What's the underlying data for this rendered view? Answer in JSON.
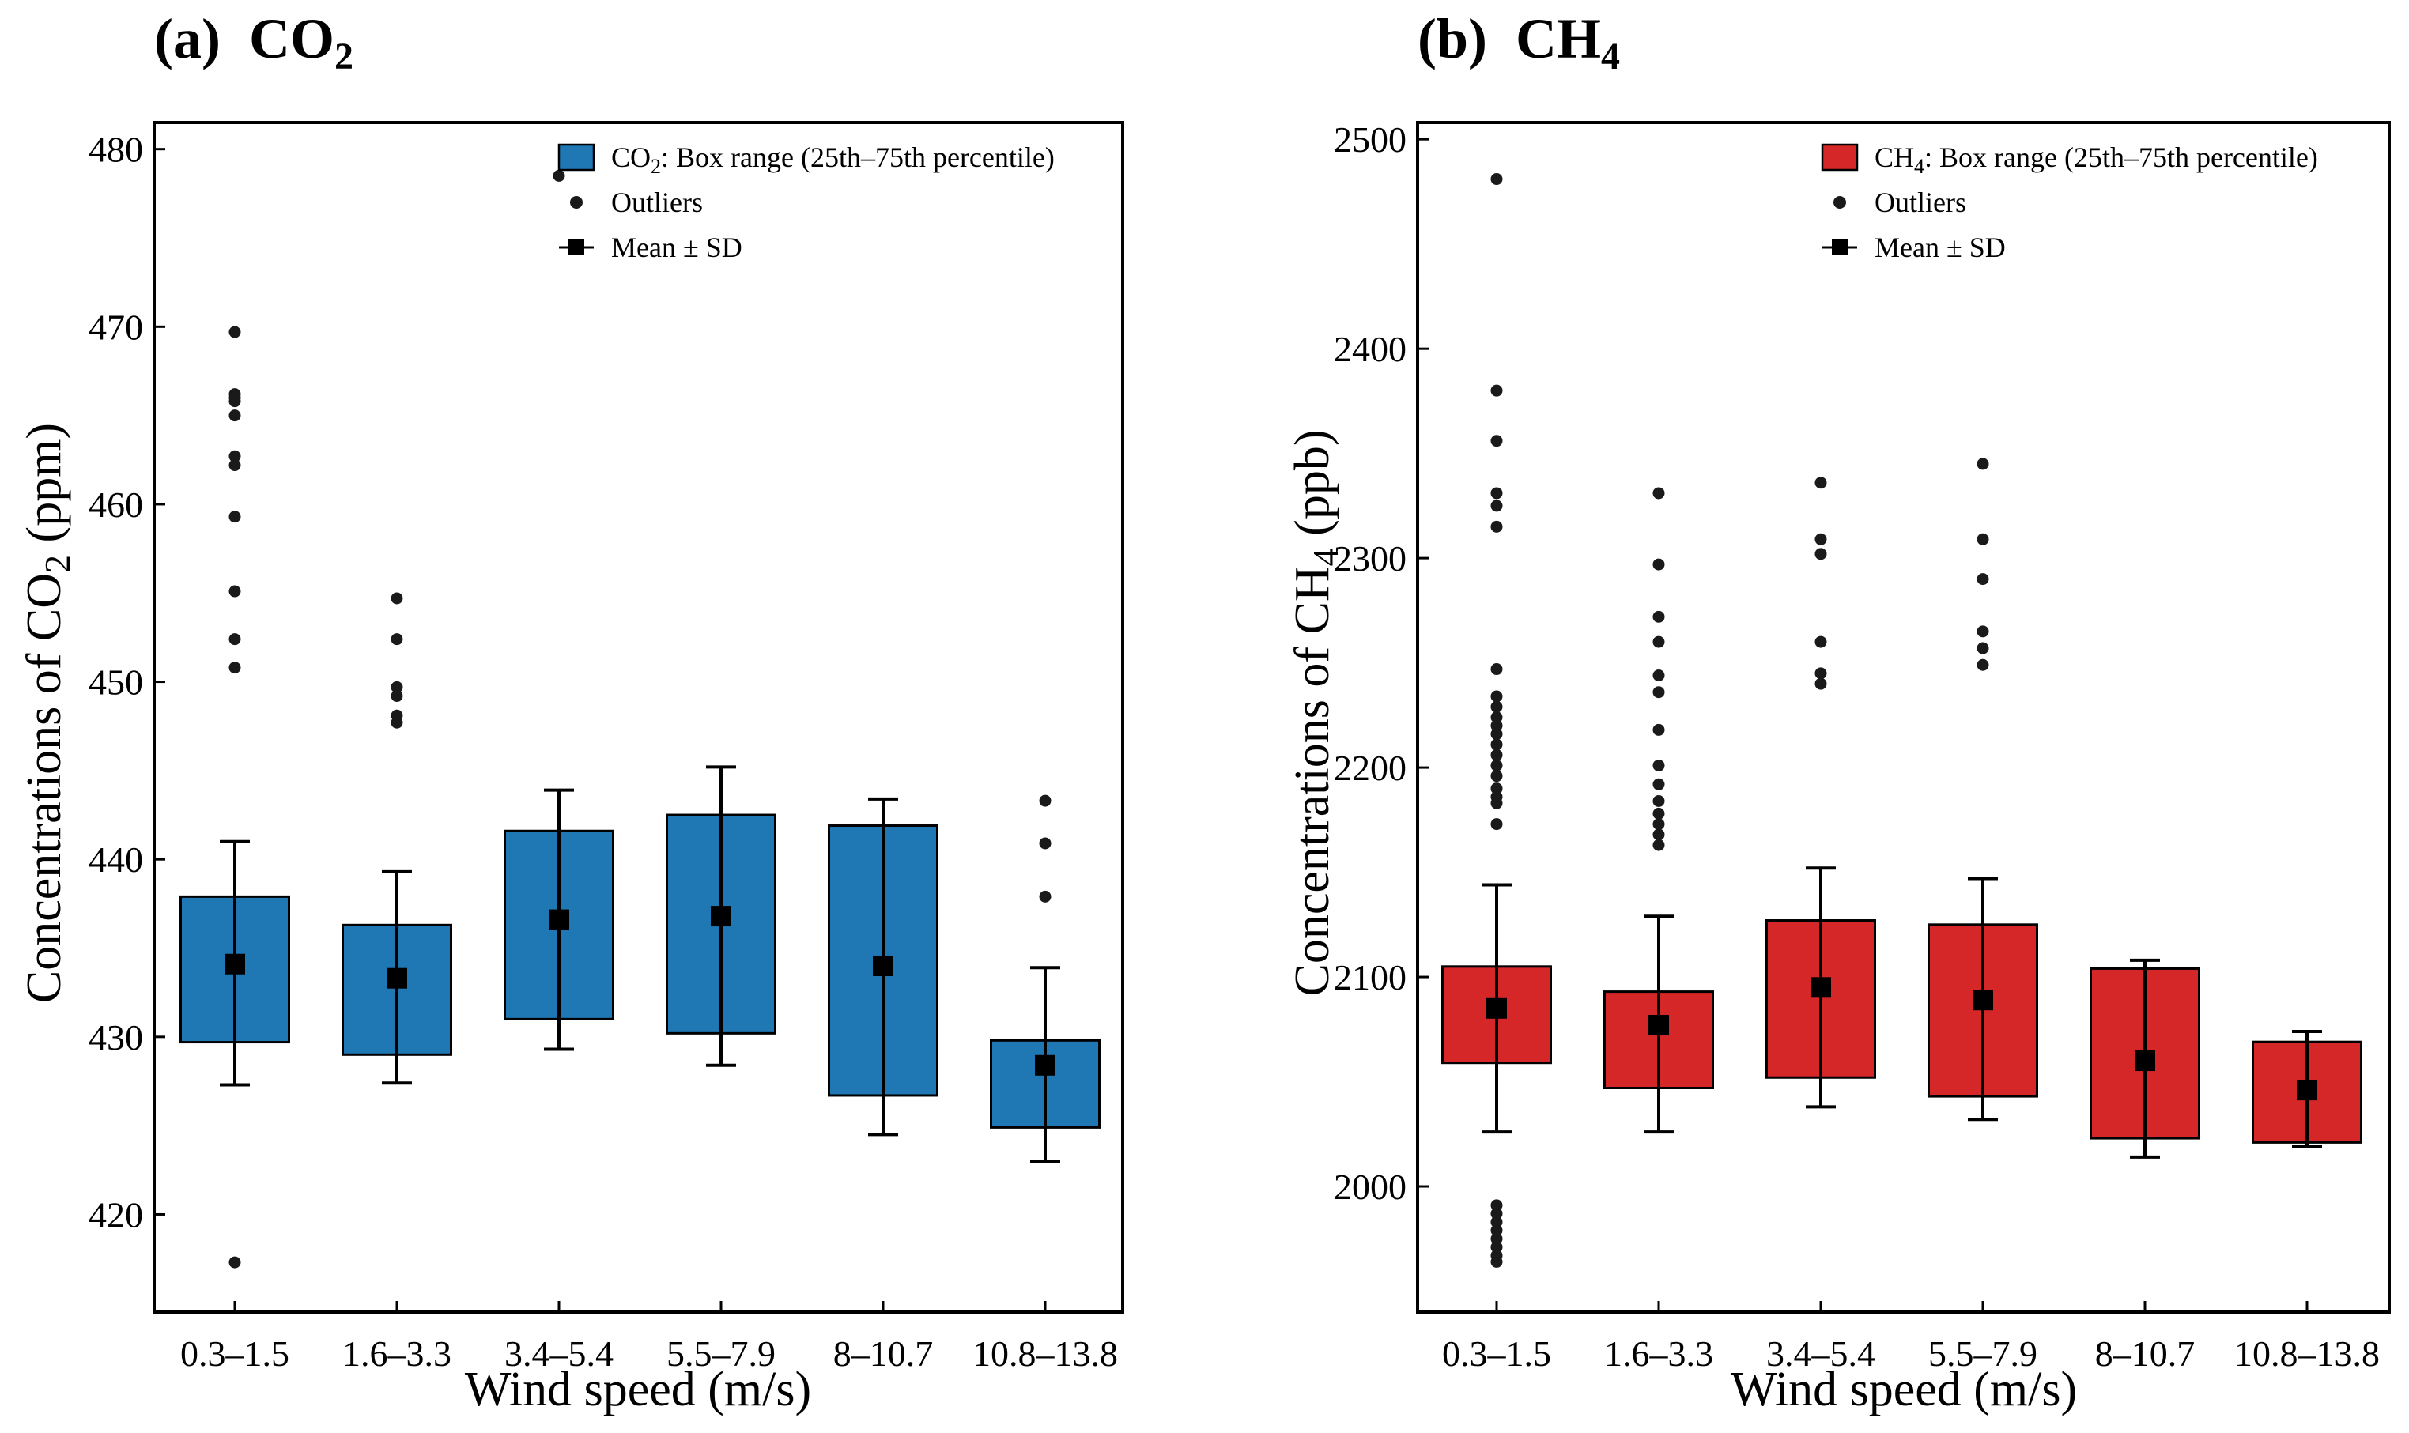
{
  "figure": {
    "background": "#ffffff"
  },
  "chart_data": [
    {
      "type": "box",
      "panel": "a",
      "title_prefix": "(a)",
      "title_main": "CO",
      "title_sub": "2",
      "xlabel": "Wind speed (m/s)",
      "ylabel_main": "Concentrations of CO",
      "ylabel_sub": "2",
      "ylabel_unit": " (ppm)",
      "color": "#1f77b4",
      "ylim": [
        414.5,
        481.5
      ],
      "yticks": [
        420,
        430,
        440,
        450,
        460,
        470,
        480
      ],
      "categories": [
        "0.3–1.5",
        "1.6–3.3",
        "3.4–5.4",
        "5.5–7.9",
        "8–10.7",
        "10.8–13.8"
      ],
      "boxes": [
        {
          "q1": 429.7,
          "q3": 437.9,
          "mean": 434.1,
          "sd_low": 427.3,
          "sd_high": 441.0,
          "outliers": [
            469.7,
            466.2,
            466.0,
            465.8,
            465.0,
            462.7,
            462.2,
            459.3,
            455.1,
            452.4,
            450.8,
            417.3
          ]
        },
        {
          "q1": 429.0,
          "q3": 436.3,
          "mean": 433.3,
          "sd_low": 427.4,
          "sd_high": 439.3,
          "outliers": [
            454.7,
            452.4,
            449.7,
            449.2,
            448.1,
            447.7
          ]
        },
        {
          "q1": 431.0,
          "q3": 441.6,
          "mean": 436.6,
          "sd_low": 429.3,
          "sd_high": 443.9,
          "outliers": [
            478.5
          ]
        },
        {
          "q1": 430.2,
          "q3": 442.5,
          "mean": 436.8,
          "sd_low": 428.4,
          "sd_high": 445.2,
          "outliers": []
        },
        {
          "q1": 426.7,
          "q3": 441.9,
          "mean": 434.0,
          "sd_low": 424.5,
          "sd_high": 443.4,
          "outliers": []
        },
        {
          "q1": 424.9,
          "q3": 429.8,
          "mean": 428.4,
          "sd_low": 423.0,
          "sd_high": 433.9,
          "outliers": [
            443.3,
            440.9,
            437.9
          ]
        }
      ],
      "legend": {
        "box_prefix": "CO",
        "box_sub": "2",
        "box_text": ": Box range (25th–75th percentile)",
        "outliers": "Outliers",
        "mean": "Mean ± SD"
      }
    },
    {
      "type": "box",
      "panel": "b",
      "title_prefix": "(b)",
      "title_main": "CH",
      "title_sub": "4",
      "xlabel": "Wind speed (m/s)",
      "ylabel_main": "Concentrations of CH",
      "ylabel_sub": "4",
      "ylabel_unit": " (ppb)",
      "color": "#d62728",
      "ylim": [
        1940,
        2508
      ],
      "yticks": [
        2000,
        2100,
        2200,
        2300,
        2400,
        2500
      ],
      "categories": [
        "0.3–1.5",
        "1.6–3.3",
        "3.4–5.4",
        "5.5–7.9",
        "8–10.7",
        "10.8–13.8"
      ],
      "boxes": [
        {
          "q1": 2059,
          "q3": 2105,
          "mean": 2085,
          "sd_low": 2026,
          "sd_high": 2144,
          "outliers": [
            2481,
            2380,
            2356,
            2331,
            2325,
            2315,
            2247,
            2234,
            2229,
            2224,
            2220,
            2216,
            2211,
            2206,
            2201,
            2196,
            2190,
            2186,
            2183,
            2173,
            1991,
            1987,
            1983,
            1979,
            1975,
            1971,
            1967,
            1964
          ]
        },
        {
          "q1": 2047,
          "q3": 2093,
          "mean": 2077,
          "sd_low": 2026,
          "sd_high": 2129,
          "outliers": [
            2331,
            2297,
            2272,
            2260,
            2244,
            2236,
            2218,
            2201,
            2192,
            2184,
            2178,
            2173,
            2168,
            2163
          ]
        },
        {
          "q1": 2052,
          "q3": 2127,
          "mean": 2095,
          "sd_low": 2038,
          "sd_high": 2152,
          "outliers": [
            2336,
            2309,
            2302,
            2260,
            2245,
            2240
          ]
        },
        {
          "q1": 2043,
          "q3": 2125,
          "mean": 2089,
          "sd_low": 2032,
          "sd_high": 2147,
          "outliers": [
            2345,
            2309,
            2290,
            2265,
            2257,
            2249
          ]
        },
        {
          "q1": 2023,
          "q3": 2104,
          "mean": 2060,
          "sd_low": 2014,
          "sd_high": 2108,
          "outliers": []
        },
        {
          "q1": 2021,
          "q3": 2069,
          "mean": 2046,
          "sd_low": 2019,
          "sd_high": 2074,
          "outliers": []
        }
      ],
      "legend": {
        "box_prefix": "CH",
        "box_sub": "4",
        "box_text": ": Box range (25th–75th percentile)",
        "outliers": "Outliers",
        "mean": "Mean ± SD"
      }
    }
  ]
}
